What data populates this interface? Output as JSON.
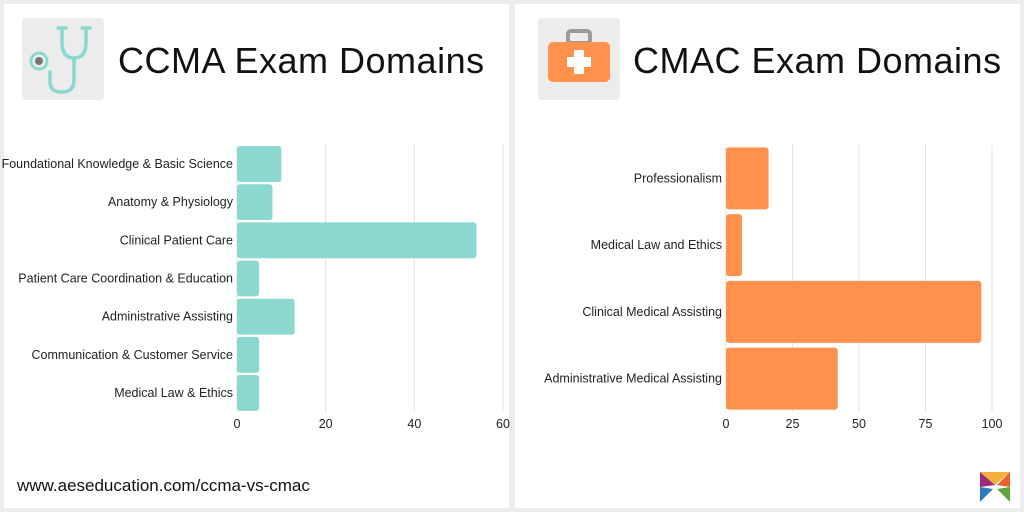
{
  "left_panel": {
    "title": "CCMA Exam Domains",
    "icon": "stethoscope-icon"
  },
  "right_panel": {
    "title": "CMAC Exam Domains",
    "icon": "first-aid-kit-icon"
  },
  "footer": {
    "url": "www.aeseducation.com/ccma-vs-cmac"
  },
  "logo": {
    "icon": "aes-logo-icon"
  },
  "colors": {
    "ccma_bar": "#8ad8cf",
    "cmac_bar": "#ff914d",
    "grid": "#e2e2e2"
  },
  "chart_data": [
    {
      "type": "bar",
      "orientation": "horizontal",
      "categories": [
        "Foundational Knowledge & Basic Science",
        "Anatomy & Physiology",
        "Clinical Patient Care",
        "Patient Care Coordination & Education",
        "Administrative Assisting",
        "Communication & Customer Service",
        "Medical Law & Ethics"
      ],
      "values": [
        10,
        8,
        54,
        5,
        13,
        5,
        5
      ],
      "xlim": [
        0,
        60
      ],
      "ticks": [
        0,
        20,
        40,
        60
      ],
      "grid": true,
      "title": "",
      "xlabel": "",
      "ylabel": ""
    },
    {
      "type": "bar",
      "orientation": "horizontal",
      "categories": [
        "Professionalism",
        "Medical Law and Ethics",
        "Clinical Medical Assisting",
        "Administrative Medical Assisting"
      ],
      "values": [
        16,
        6,
        96,
        42
      ],
      "xlim": [
        0,
        100
      ],
      "ticks": [
        0,
        25,
        50,
        75,
        100
      ],
      "grid": true,
      "title": "",
      "xlabel": "",
      "ylabel": ""
    }
  ]
}
